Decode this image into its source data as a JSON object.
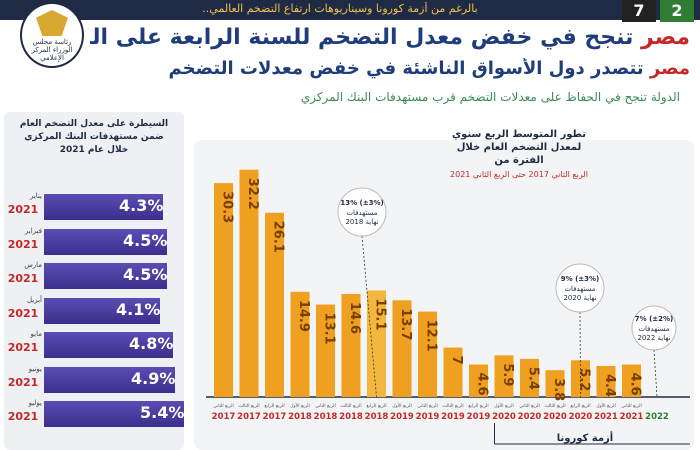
{
  "header": {
    "topbar_text": "بالرغم من أزمة كورونا وسيناريوهات ارتفاع التضخم العالمي..",
    "badge_green": "2",
    "badge_black": "7",
    "logo_text": "رئاسة مجلس الوزراء المركز الإعلامي",
    "title_red": "مصر",
    "title_rest": " تنجح في خفض معدل التضخم للسنة الرابعة على التوالي",
    "subtitle_red": "مصر",
    "subtitle_rest": " تتصدر دول الأسواق الناشئة في خفض معدلات التضخم",
    "tagline": "الدولة تنجح في الحفاظ على معدلات التضخم قرب مستهدفات البنك المركزي"
  },
  "left_panel": {
    "title": "السيطرة على معدل التضخم العام ضمن مستهدفات البنك المركزي خلال عام 2021",
    "rows": [
      {
        "month": "يناير",
        "year": "2021",
        "value": 4.3,
        "label": "4.3"
      },
      {
        "month": "فبراير",
        "year": "2021",
        "value": 4.5,
        "label": "4.5"
      },
      {
        "month": "مارس",
        "year": "2021",
        "value": 4.5,
        "label": "4.5"
      },
      {
        "month": "أبريل",
        "year": "2021",
        "value": 4.1,
        "label": "4.1"
      },
      {
        "month": "مايو",
        "year": "2021",
        "value": 4.8,
        "label": "4.8"
      },
      {
        "month": "يونيو",
        "year": "2021",
        "value": 4.9,
        "label": "4.9"
      },
      {
        "month": "يوليو",
        "year": "2021",
        "value": 5.4,
        "label": "5.4"
      }
    ],
    "percent_sign": "%"
  },
  "chart_data": {
    "type": "bar",
    "title": "تطور المتوسط الربع سنوي لمعدل التضخم العام خلال الفترة من",
    "subtitle": "الربع الثاني 2017 حتى الربع الثاني 2021",
    "categories": [
      "2017",
      "2017",
      "2017",
      "2018",
      "2018",
      "2018",
      "2018",
      "2019",
      "2019",
      "2019",
      "2019",
      "2020",
      "2020",
      "2020",
      "2020",
      "2021",
      "2021",
      "2022"
    ],
    "quarter_labels": [
      "الربع الثاني",
      "الربع الثالث",
      "الربع الرابع",
      "الربع الأول",
      "الربع الثاني",
      "الربع الثالث",
      "الربع الرابع",
      "الربع الأول",
      "الربع الثاني",
      "الربع الثالث",
      "الربع الرابع",
      "الربع الأول",
      "الربع الثاني",
      "الربع الثالث",
      "الربع الرابع",
      "الربع الأول",
      "الربع الثاني",
      ""
    ],
    "values": [
      30.3,
      32.2,
      26.1,
      14.9,
      13.1,
      14.6,
      15.1,
      13.7,
      12.1,
      7,
      4.6,
      5.9,
      5.4,
      3.8,
      5.2,
      4.4,
      4.6,
      null
    ],
    "labels": [
      "30.3",
      "32.2",
      "26.1",
      "14.9",
      "13.1",
      "14.6",
      "15.1",
      "13.7",
      "12.1",
      "7",
      "4.6",
      "5.9",
      "5.4",
      "3.8",
      "5.2",
      "4.4",
      "4.6",
      ""
    ],
    "highlight_indices": [
      6
    ],
    "ylim": [
      0,
      34
    ],
    "colors": {
      "bar": "#f0a020",
      "bar_highlight": "#f4b73d",
      "label": "#7a3f00",
      "year": "#c62828",
      "axis": "#1f2a44",
      "year_2022": "#2e7d32"
    },
    "annotations": [
      {
        "text": "13% (±3%)",
        "line2": "مستهدفات",
        "line3": "نهاية 2018",
        "bar_index": 6
      },
      {
        "text": "9% (±3%)",
        "line2": "مستهدفات",
        "line3": "نهاية 2020",
        "bar_index": 14
      },
      {
        "text": "7% (±2%)",
        "line2": "مستهدفات",
        "line3": "نهاية 2022",
        "bar_index": 17
      }
    ],
    "covid_label": "أزمة كورونا",
    "covid_start_index": 11
  }
}
